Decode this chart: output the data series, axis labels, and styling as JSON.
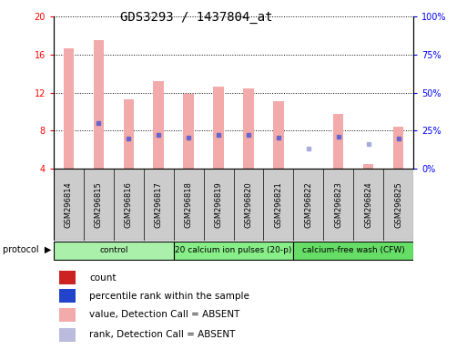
{
  "title": "GDS3293 / 1437804_at",
  "samples": [
    "GSM296814",
    "GSM296815",
    "GSM296816",
    "GSM296817",
    "GSM296818",
    "GSM296819",
    "GSM296820",
    "GSM296821",
    "GSM296822",
    "GSM296823",
    "GSM296824",
    "GSM296825"
  ],
  "values": [
    16.7,
    17.5,
    11.3,
    13.2,
    11.9,
    12.6,
    12.4,
    11.1,
    3.9,
    9.8,
    4.5,
    8.4
  ],
  "ranks_pct": [
    null,
    30.0,
    20.0,
    22.0,
    20.5,
    22.5,
    22.5,
    20.5,
    13.0,
    21.0,
    16.0,
    20.0
  ],
  "value_absent": [
    true,
    true,
    true,
    true,
    true,
    true,
    true,
    true,
    true,
    true,
    true,
    true
  ],
  "rank_absent": [
    false,
    false,
    false,
    false,
    false,
    false,
    false,
    false,
    true,
    false,
    true,
    false
  ],
  "ylim_left": [
    4,
    20
  ],
  "ylim_right": [
    0,
    100
  ],
  "yticks_left": [
    4,
    8,
    12,
    16,
    20
  ],
  "yticks_right": [
    0,
    25,
    50,
    75,
    100
  ],
  "ytick_labels_right": [
    "0%",
    "25%",
    "50%",
    "75%",
    "100%"
  ],
  "bar_color_absent": "#f2aaaa",
  "dot_color_normal": "#6666cc",
  "dot_color_absent": "#aaaadd",
  "protocol_groups": [
    {
      "start": 0,
      "end": 3,
      "label": "control",
      "color": "#aaf0aa"
    },
    {
      "start": 4,
      "end": 7,
      "label": "20 calcium ion pulses (20-p)",
      "color": "#88ee88"
    },
    {
      "start": 8,
      "end": 11,
      "label": "calcium-free wash (CFW)",
      "color": "#66dd66"
    }
  ],
  "title_fontsize": 10,
  "tick_fontsize": 7,
  "legend_fontsize": 7.5,
  "bar_width": 0.35
}
